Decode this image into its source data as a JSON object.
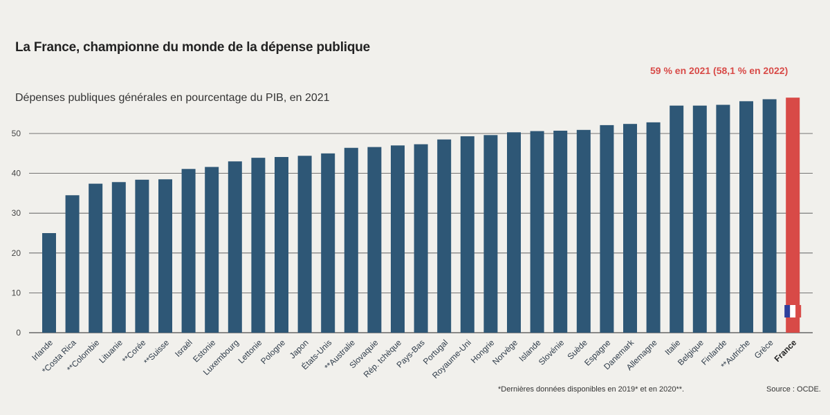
{
  "title": "La France, championne du monde de la dépense publique",
  "subtitle": "Dépenses publiques générales en pourcentage du PIB, en 2021",
  "highlight_note": "59 % en 2021 (58,1 % en 2022)",
  "footnote": "*Dernières données disponibles en 2019* et en 2020**.",
  "source": "Source : OCDE.",
  "colors": {
    "bar": "#2e5776",
    "highlight": "#d84a47",
    "grid": "#4b4b4b",
    "background": "#f1f0ec",
    "flag_blue": "#2d3f9c",
    "flag_white": "#ffffff",
    "flag_red": "#d84a47"
  },
  "chart_data": {
    "type": "bar",
    "title": "La France, championne du monde de la dépense publique",
    "subtitle": "Dépenses publiques générales en pourcentage du PIB, en 2021",
    "xlabel": "",
    "ylabel": "",
    "ylim": [
      0,
      58
    ],
    "yticks": [
      0,
      10,
      20,
      30,
      40,
      50
    ],
    "grid": true,
    "highlight_category": "France",
    "categories": [
      "Irlande",
      "*Costa Rica",
      "**Colombie",
      "Lituanie",
      "**Corée",
      "**Suisse",
      "Israël",
      "Estonie",
      "Luxembourg",
      "Lettonie",
      "Pologne",
      "Japon",
      "États-Unis",
      "**Australie",
      "Slovaquie",
      "Rép. tchèque",
      "Pays-Bas",
      "Portugal",
      "Royaume-Uni",
      "Hongrie",
      "Norvège",
      "Islande",
      "Slovénie",
      "Suède",
      "Espagne",
      "Danemark",
      "Allemagne",
      "Italie",
      "Belgique",
      "Finlande",
      "**Autriche",
      "Grèce",
      "France"
    ],
    "values": [
      25.0,
      34.5,
      37.4,
      37.8,
      38.4,
      38.5,
      41.1,
      41.6,
      43.0,
      43.9,
      44.1,
      44.4,
      45.0,
      46.4,
      46.6,
      47.0,
      47.3,
      48.5,
      49.3,
      49.6,
      50.3,
      50.6,
      50.7,
      50.9,
      52.1,
      52.4,
      52.8,
      57.0,
      57.0,
      57.2,
      58.1,
      58.6,
      59.0
    ]
  }
}
